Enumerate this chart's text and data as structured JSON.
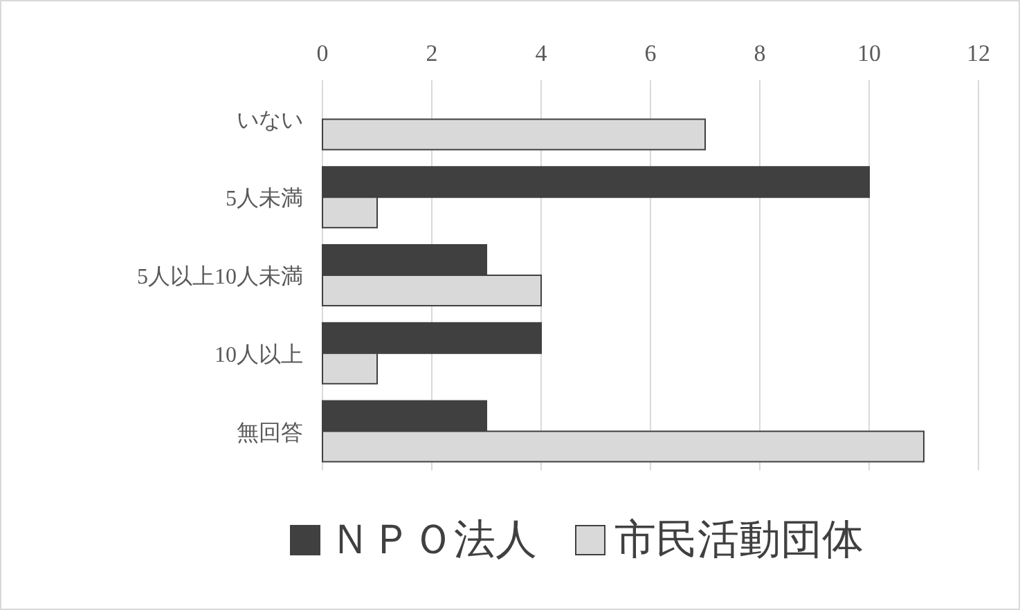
{
  "chart_data": {
    "type": "bar",
    "orientation": "horizontal",
    "categories": [
      "いない",
      "5人未満",
      "5人以上10人未満",
      "10人以上",
      "無回答"
    ],
    "series": [
      {
        "name": "ＮＰＯ法人",
        "color": "#404040",
        "values": [
          0,
          10,
          3,
          4,
          3
        ]
      },
      {
        "name": "市民活動団体",
        "color": "#d9d9d9",
        "values": [
          7,
          1,
          4,
          1,
          11
        ]
      }
    ],
    "xlim": [
      0,
      12
    ],
    "xticks": [
      0,
      2,
      4,
      6,
      8,
      10,
      12
    ],
    "grid": "x",
    "legend": "bottom"
  }
}
